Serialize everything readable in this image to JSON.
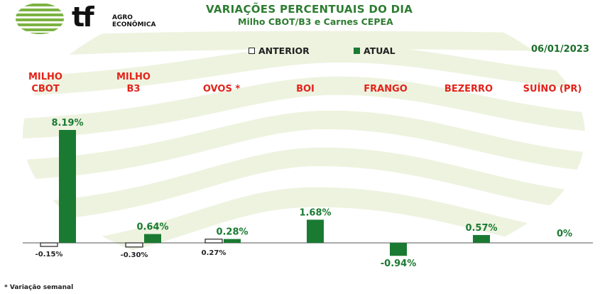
{
  "header": {
    "title": "VARIAÇÕES PERCENTUAIS DO DIA",
    "subtitle": "Milho CBOT/B3 e Carnes CEPEA",
    "date": "06/01/2023"
  },
  "logo": {
    "mark": "tf",
    "line1": "AGRO",
    "line2": "ECONÔMICA",
    "icon": "globe-stripes-icon"
  },
  "legend": {
    "previous": "ANTERIOR",
    "current": "ATUAL"
  },
  "footnote": "* Variação semanal",
  "colors": {
    "current": "#1a7a32",
    "previous_border": "#222222",
    "category_label": "#e3231a",
    "title": "#2e7d32",
    "watermark": "#eef3e0"
  },
  "chart_data": {
    "type": "bar",
    "categories": [
      {
        "line1": "MILHO",
        "line2": "CBOT"
      },
      {
        "line1": "MILHO",
        "line2": "B3"
      },
      {
        "line1": "OVOS *",
        "line2": ""
      },
      {
        "line1": "BOI",
        "line2": ""
      },
      {
        "line1": "FRANGO",
        "line2": ""
      },
      {
        "line1": "BEZERRO",
        "line2": ""
      },
      {
        "line1": "SUÍNO (PR)",
        "line2": ""
      }
    ],
    "series": [
      {
        "name": "ANTERIOR",
        "values": [
          -0.15,
          -0.3,
          0.27,
          null,
          null,
          null,
          null
        ],
        "labels": [
          "-0.15%",
          "-0.30%",
          "0.27%",
          "",
          "",
          "",
          ""
        ]
      },
      {
        "name": "ATUAL",
        "values": [
          8.19,
          0.64,
          0.28,
          1.68,
          -0.94,
          0.57,
          0
        ],
        "labels": [
          "8.19%",
          "0.64%",
          "0.28%",
          "1.68%",
          "-0.94%",
          "0.57%",
          "0%"
        ]
      }
    ],
    "ylim": [
      -1.2,
      8.19
    ]
  }
}
